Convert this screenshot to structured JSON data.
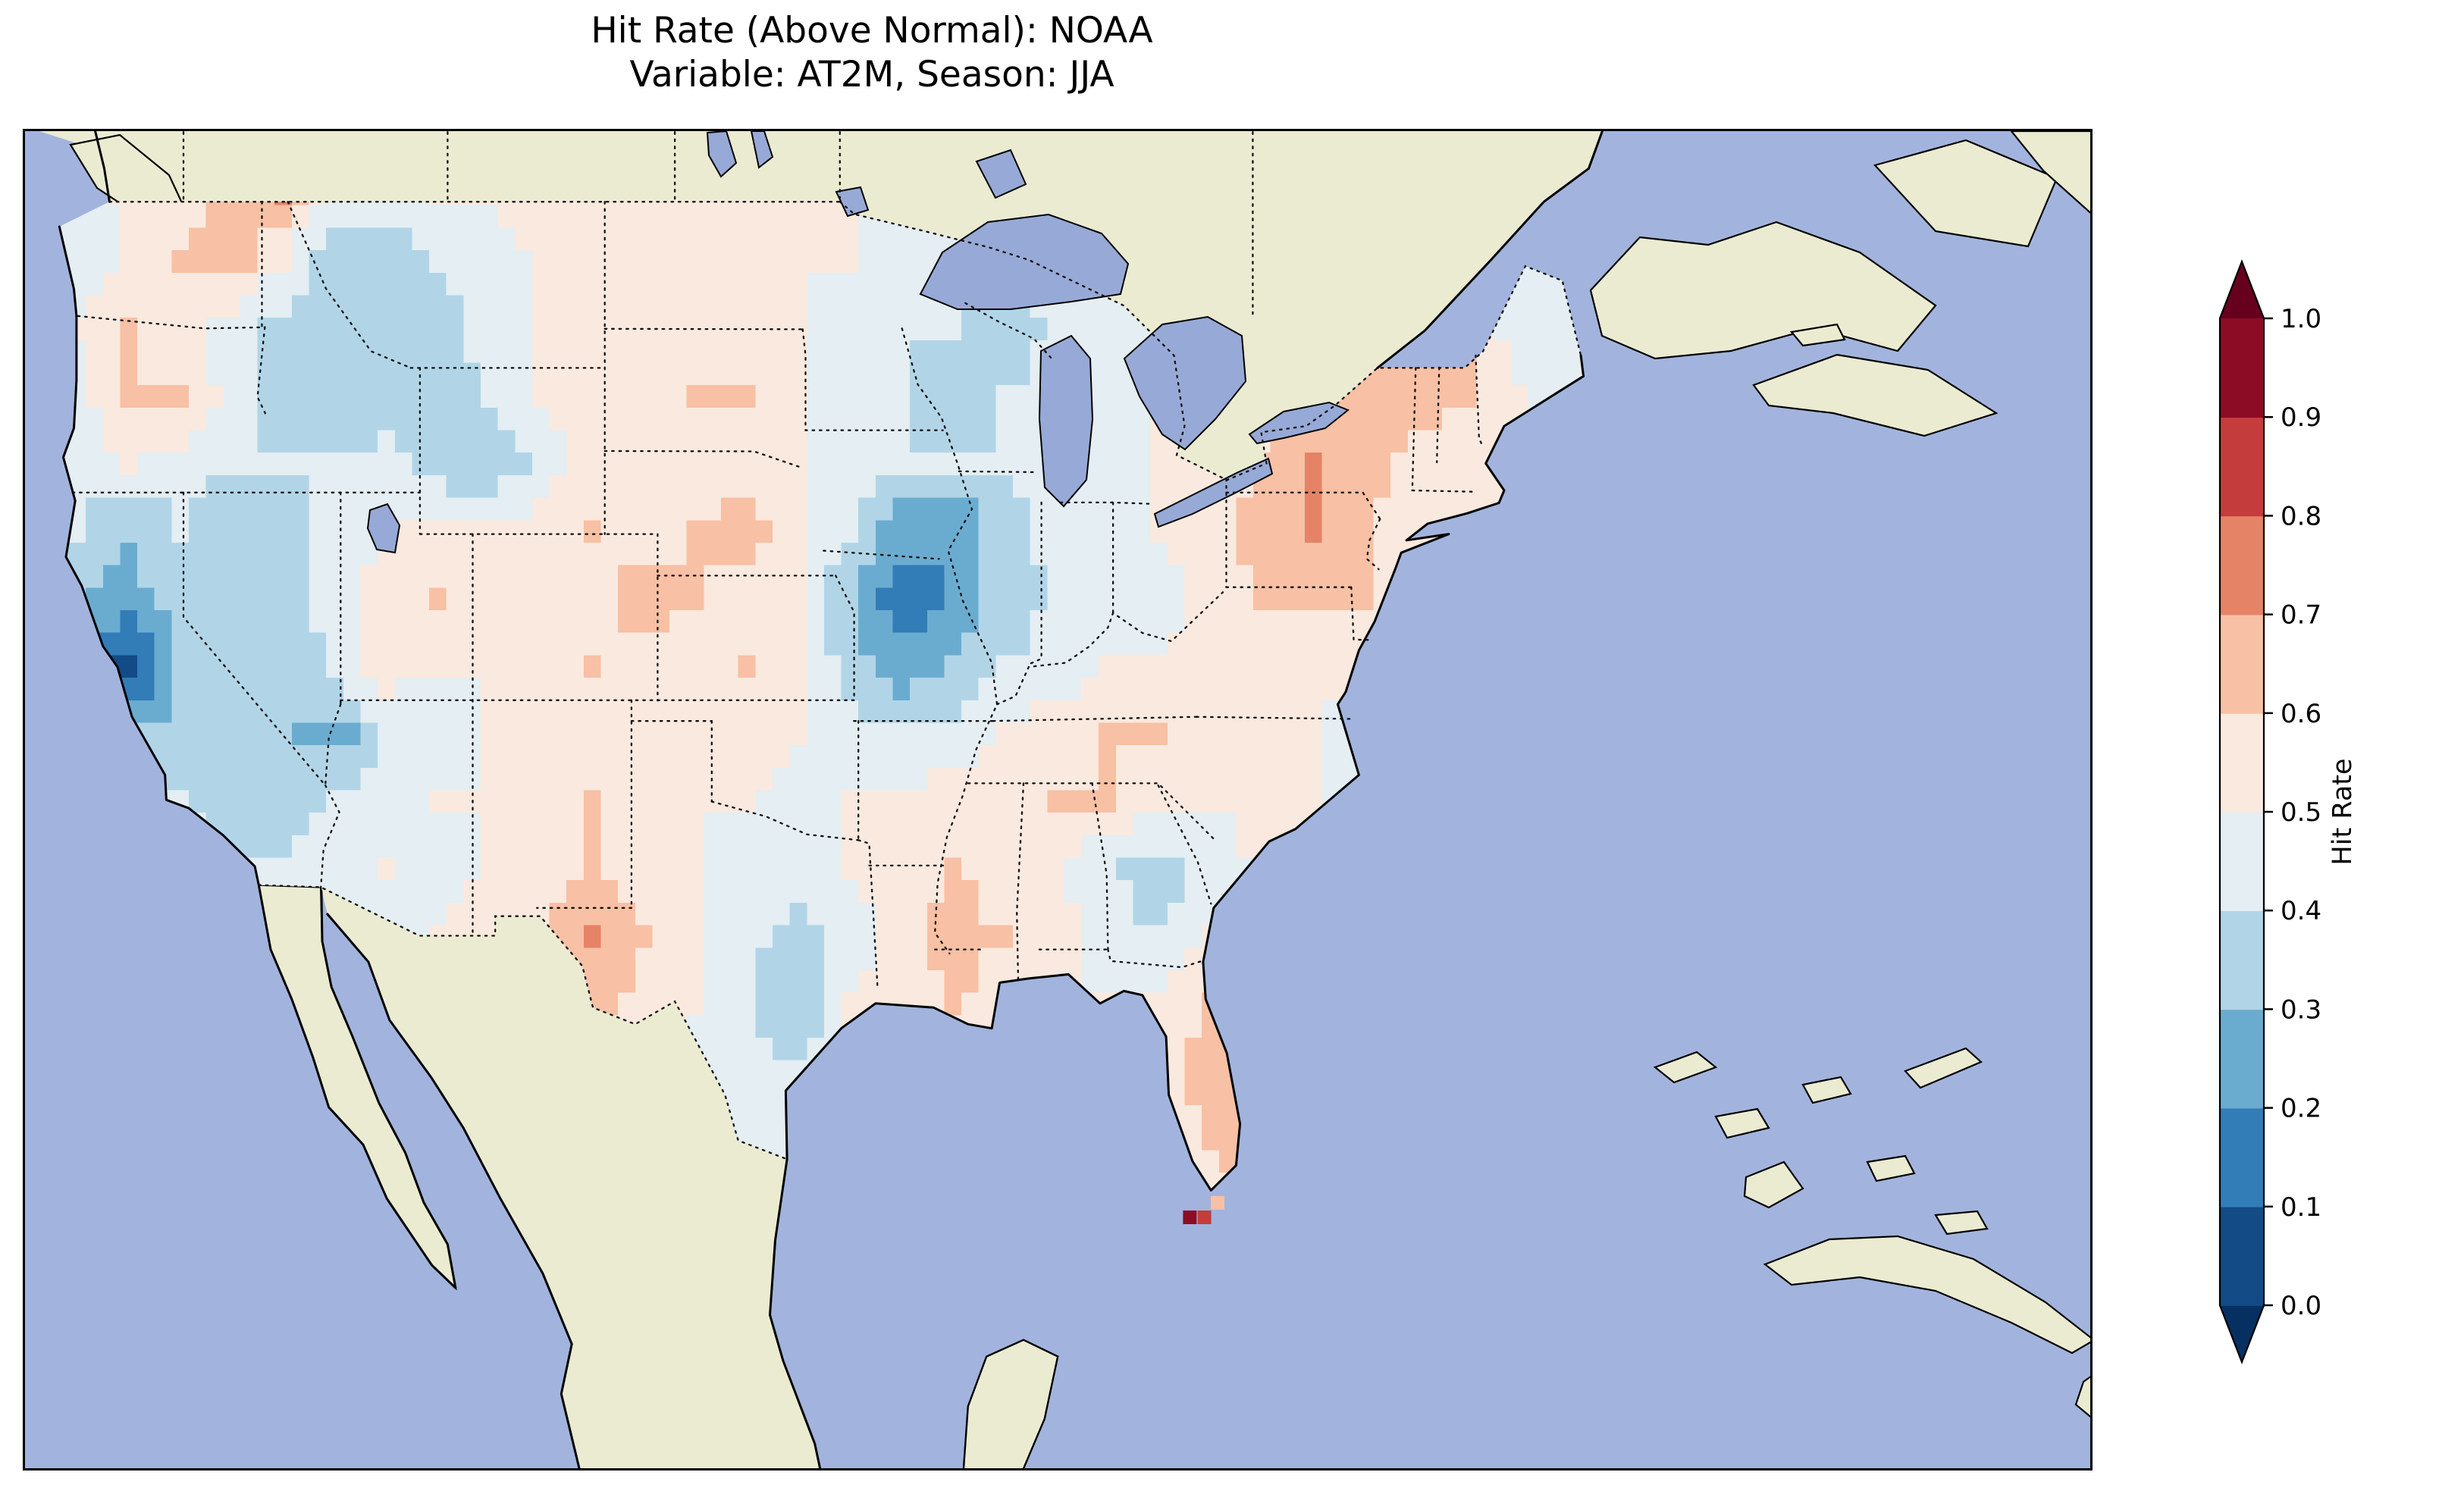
{
  "figure": {
    "title_line1": "Hit Rate (Above Normal): NOAA",
    "title_line2": "Variable: AT2M, Season: JJA"
  },
  "colorbar": {
    "label": "Hit Rate",
    "ticks": [
      "0.0",
      "0.1",
      "0.2",
      "0.3",
      "0.4",
      "0.5",
      "0.6",
      "0.7",
      "0.8",
      "0.9",
      "1.0"
    ],
    "segment_colors": [
      "#134b86",
      "#327cb7",
      "#6aacd0",
      "#b1d5e7",
      "#e4eef3",
      "#fae9df",
      "#f8c0a4",
      "#e58367",
      "#c43c3c",
      "#8c0c25"
    ],
    "under_color": "#053061",
    "over_color": "#67001f"
  },
  "map": {
    "ocean_color": "#a2b4dd",
    "land_color": "#ebebd2",
    "lake_color": "#97a9d6",
    "coastline_color": "#000000",
    "border_color": "#111111"
  },
  "chart_data": {
    "type": "heatmap",
    "title": "Hit Rate (Above Normal): NOAA",
    "subtitle": "Variable: AT2M, Season: JJA",
    "dataset": "NOAA",
    "variable": "AT2M",
    "season": "JJA",
    "metric": "Hit Rate (Above Normal)",
    "region": "Contiguous United States",
    "colormap": "RdBu_r, discrete 0.1 bins with extend triangles",
    "colorbar_label": "Hit Rate",
    "colorbar_ticks": [
      0.0,
      0.1,
      0.2,
      0.3,
      0.4,
      0.5,
      0.6,
      0.7,
      0.8,
      0.9,
      1.0
    ],
    "value_range": [
      0.0,
      1.0
    ],
    "legend_position": "right vertical colorbar",
    "grid": {
      "note": "Approximate hit-rate values read from the map on a coarse 30x16 lon/lat grid, rows north to south",
      "lon_start": -125.0,
      "lon_step": 1.95,
      "lat_start": 50.0,
      "lat_step": -1.625,
      "values": [
        [
          0.5,
          0.5,
          0.55,
          0.65,
          0.7,
          0.45,
          0.45,
          0.5,
          0.5,
          0.55,
          0.55,
          0.55,
          0.55,
          0.5,
          0.55,
          0.5,
          0.45,
          0.45,
          0.4,
          0.45,
          0.45,
          0.45,
          0.5,
          0.5,
          0.45,
          0.5,
          0.55,
          0.5,
          0.45,
          0.45
        ],
        [
          0.45,
          0.5,
          0.6,
          0.65,
          0.5,
          0.3,
          0.35,
          0.4,
          0.45,
          0.5,
          0.55,
          0.55,
          0.55,
          0.55,
          0.5,
          0.5,
          0.45,
          0.4,
          0.4,
          0.45,
          0.45,
          0.5,
          0.5,
          0.45,
          0.5,
          0.55,
          0.6,
          0.55,
          0.45,
          0.4
        ],
        [
          0.5,
          0.6,
          0.55,
          0.45,
          0.35,
          0.3,
          0.3,
          0.35,
          0.45,
          0.5,
          0.55,
          0.55,
          0.55,
          0.55,
          0.5,
          0.45,
          0.4,
          0.4,
          0.35,
          0.4,
          0.45,
          0.5,
          0.5,
          0.5,
          0.55,
          0.6,
          0.65,
          0.6,
          0.45,
          0.45
        ],
        [
          0.45,
          0.6,
          0.6,
          0.45,
          0.35,
          0.35,
          0.3,
          0.35,
          0.4,
          0.5,
          0.55,
          0.55,
          0.6,
          0.6,
          0.5,
          0.45,
          0.4,
          0.35,
          0.4,
          0.45,
          0.45,
          0.5,
          0.55,
          0.55,
          0.6,
          0.6,
          0.65,
          0.6,
          0.5,
          0.45
        ],
        [
          0.45,
          0.5,
          0.45,
          0.4,
          0.4,
          0.4,
          0.45,
          0.35,
          0.3,
          0.45,
          0.55,
          0.55,
          0.55,
          0.55,
          0.5,
          0.45,
          0.4,
          0.4,
          0.4,
          0.45,
          0.45,
          0.5,
          0.55,
          0.6,
          0.7,
          0.65,
          0.55,
          0.55,
          0.5,
          0.45
        ],
        [
          0.4,
          0.3,
          0.4,
          0.35,
          0.35,
          0.45,
          0.5,
          0.55,
          0.5,
          0.55,
          0.6,
          0.55,
          0.6,
          0.65,
          0.55,
          0.4,
          0.25,
          0.2,
          0.35,
          0.45,
          0.45,
          0.5,
          0.55,
          0.65,
          0.7,
          0.6,
          0.55,
          0.55,
          0.5,
          0.45
        ],
        [
          0.3,
          0.25,
          0.35,
          0.3,
          0.35,
          0.45,
          0.55,
          0.6,
          0.55,
          0.5,
          0.55,
          0.65,
          0.6,
          0.55,
          0.5,
          0.3,
          0.15,
          0.2,
          0.35,
          0.4,
          0.45,
          0.45,
          0.55,
          0.6,
          0.6,
          0.6,
          0.55,
          0.5,
          0.45,
          0.5
        ],
        [
          0.15,
          0.05,
          0.3,
          0.35,
          0.3,
          0.4,
          0.55,
          0.5,
          0.5,
          0.55,
          0.6,
          0.55,
          0.55,
          0.6,
          0.5,
          0.35,
          0.25,
          0.3,
          0.4,
          0.45,
          0.5,
          0.5,
          0.55,
          0.55,
          0.5,
          0.55,
          0.5,
          0.45,
          0.45,
          0.5
        ],
        [
          0.3,
          0.3,
          0.35,
          0.35,
          0.3,
          0.25,
          0.4,
          0.45,
          0.5,
          0.55,
          0.55,
          0.5,
          0.5,
          0.55,
          0.5,
          0.45,
          0.4,
          0.45,
          0.5,
          0.55,
          0.6,
          0.6,
          0.55,
          0.5,
          0.5,
          0.45,
          0.5,
          0.45,
          0.4,
          0.45
        ],
        [
          0.4,
          0.45,
          0.4,
          0.35,
          0.35,
          0.4,
          0.45,
          0.5,
          0.5,
          0.55,
          0.6,
          0.55,
          0.5,
          0.5,
          0.45,
          0.5,
          0.5,
          0.55,
          0.55,
          0.6,
          0.6,
          0.55,
          0.5,
          0.55,
          0.5,
          0.45,
          0.5,
          0.45,
          0.5,
          0.45
        ],
        [
          0.45,
          0.5,
          0.45,
          0.4,
          0.4,
          0.45,
          0.5,
          0.45,
          0.5,
          0.55,
          0.6,
          0.55,
          0.5,
          0.45,
          0.45,
          0.5,
          0.55,
          0.6,
          0.55,
          0.5,
          0.4,
          0.35,
          0.45,
          0.5,
          0.55,
          0.5,
          0.45,
          0.5,
          0.45,
          0.5
        ],
        [
          0.5,
          0.45,
          0.5,
          0.45,
          0.5,
          0.5,
          0.45,
          0.5,
          0.55,
          0.6,
          0.7,
          0.6,
          0.5,
          0.45,
          0.35,
          0.45,
          0.55,
          0.65,
          0.6,
          0.55,
          0.45,
          0.4,
          0.5,
          0.55,
          0.5,
          0.45,
          0.5,
          0.45,
          0.5,
          0.45
        ],
        [
          0.45,
          0.5,
          0.45,
          0.5,
          0.45,
          0.5,
          0.5,
          0.45,
          0.5,
          0.55,
          0.65,
          0.55,
          0.5,
          0.4,
          0.3,
          0.5,
          0.55,
          0.6,
          0.55,
          0.5,
          0.5,
          0.55,
          0.6,
          0.55,
          0.5,
          0.5,
          0.45,
          0.5,
          0.45,
          0.5
        ],
        [
          0.5,
          0.45,
          0.5,
          0.45,
          0.5,
          0.45,
          0.5,
          0.5,
          0.45,
          0.5,
          0.55,
          0.5,
          0.45,
          0.45,
          0.4,
          0.5,
          0.5,
          0.55,
          0.5,
          0.45,
          0.5,
          0.55,
          0.65,
          0.6,
          0.5,
          0.45,
          0.5,
          0.45,
          0.5,
          0.45
        ],
        [
          0.45,
          0.5,
          0.45,
          0.5,
          0.5,
          0.45,
          0.5,
          0.45,
          0.5,
          0.55,
          0.5,
          0.45,
          0.5,
          0.45,
          0.45,
          0.5,
          0.45,
          0.5,
          0.55,
          0.5,
          0.45,
          0.5,
          0.6,
          0.65,
          0.55,
          0.5,
          0.45,
          0.5,
          0.45,
          0.5
        ],
        [
          0.5,
          0.45,
          0.5,
          0.45,
          0.5,
          0.5,
          0.45,
          0.5,
          0.45,
          0.5,
          0.5,
          0.55,
          0.45,
          0.5,
          0.5,
          0.45,
          0.5,
          0.45,
          0.5,
          0.55,
          0.5,
          0.45,
          0.55,
          0.6,
          0.5,
          0.45,
          0.5,
          0.45,
          0.5,
          0.45
        ]
      ]
    },
    "florida_keys_cells": [
      {
        "lon": -81.9,
        "lat": 24.55,
        "value": 0.95
      },
      {
        "lon": -81.35,
        "lat": 24.55,
        "value": 0.85
      },
      {
        "lon": -80.85,
        "lat": 24.9,
        "value": 0.65
      }
    ]
  }
}
